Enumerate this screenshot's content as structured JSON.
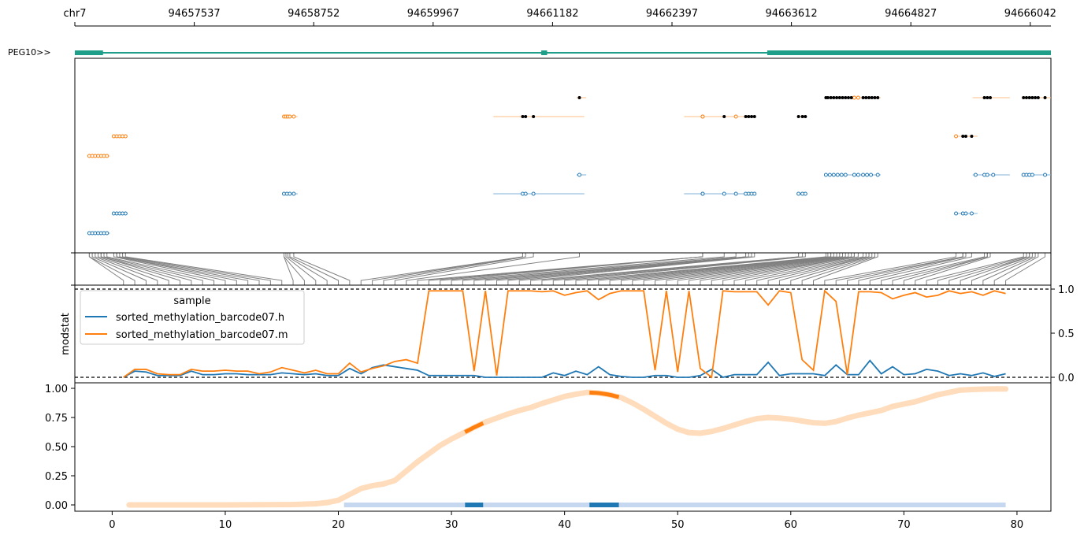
{
  "colors": {
    "gene": "#1f9e89",
    "blue": "#1f77b4",
    "orange": "#ff7f0e",
    "lightblue": "#aec7e8",
    "peach": "#ffd8b5",
    "connector": "#808080",
    "black": "#000000"
  },
  "chart_data": [
    {
      "type": "gene-track",
      "gene_label": "PEG10>>",
      "coordinate_axis": {
        "ticks": [
          "chr7",
          "94657537",
          "94658752",
          "94659967",
          "94661182",
          "94662397",
          "94663612",
          "94664827",
          "94666042"
        ],
        "range": [
          94656322,
          94666300
        ]
      },
      "exons": [
        [
          94656322,
          94656610
        ],
        [
          94661090,
          94661150
        ],
        [
          94663400,
          94666300
        ]
      ]
    },
    {
      "type": "scatter",
      "description_axis": "reads (genomic coordinate)",
      "rows": [
        {
          "color": "orange",
          "segments": [
            [
              94661450,
              94661550
            ]
          ],
          "open": [],
          "filled": [
            94661480
          ]
        },
        {
          "color": "orange",
          "segments": [
            [
              94662700,
              94663280
            ]
          ],
          "open": [
            94662740
          ],
          "filled": []
        },
        {
          "color": "orange",
          "segments": [
            [
              94664000,
              94664560
            ]
          ],
          "open": [
            94664290,
            94664330
          ],
          "filled": [
            94664000,
            94664020,
            94664050,
            94664080,
            94664110,
            94664140,
            94664170,
            94664200,
            94664230,
            94664260,
            94664380,
            94664410,
            94664440,
            94664470,
            94664500,
            94664530
          ]
        },
        {
          "color": "orange",
          "segments": [
            [
              94665500,
              94665880
            ]
          ],
          "open": [],
          "filled": [
            94665620,
            94665650,
            94665680
          ]
        },
        {
          "color": "orange",
          "segments": [
            [
              94666000,
              94666300
            ]
          ],
          "open": [],
          "filled": [
            94666020,
            94666050,
            94666080,
            94666110,
            94666140,
            94666170,
            94666240
          ]
        },
        {
          "color": "orange",
          "segments": [
            [
              94658440,
              94658600
            ]
          ],
          "open": [
            94658460,
            94658480,
            94658500,
            94658520,
            94658560
          ],
          "filled": []
        },
        {
          "color": "orange",
          "segments": [
            [
              94660600,
              94661530
            ]
          ],
          "open": [],
          "filled": [
            94660900,
            94660930,
            94661010
          ]
        },
        {
          "color": "orange",
          "segments": [
            [
              94662550,
              94662740
            ]
          ],
          "open": [
            94662740
          ],
          "filled": []
        },
        {
          "color": "orange",
          "segments": [
            [
              94662960,
              94663150
            ]
          ],
          "open": [
            94663080
          ],
          "filled": [
            94662960,
            94663180,
            94663210,
            94663240,
            94663270
          ]
        },
        {
          "color": "orange",
          "segments": [
            [
              94663720,
              94663800
            ]
          ],
          "open": [],
          "filled": [
            94663720,
            94663760,
            94663790
          ]
        },
        {
          "color": "orange",
          "segments": [
            [
              94656700,
              94656860
            ]
          ],
          "open": [
            94656720,
            94656750,
            94656780,
            94656810,
            94656840
          ],
          "filled": []
        },
        {
          "color": "orange",
          "segments": [
            [
              94665320,
              94665550
            ]
          ],
          "open": [
            94665330
          ],
          "filled": [
            94665400,
            94665430,
            94665490
          ]
        },
        {
          "color": "orange",
          "segments": [
            [
              94656460,
              94656680
            ]
          ],
          "open": [
            94656470,
            94656500,
            94656530,
            94656560,
            94656590,
            94656620,
            94656650
          ],
          "filled": []
        },
        {
          "color": "blue",
          "segments": [
            [
              94661450,
              94661550
            ]
          ],
          "open": [
            94661480
          ],
          "filled": []
        },
        {
          "color": "blue",
          "segments": [
            [
              94662700,
              94663280
            ]
          ],
          "open": [
            94662740
          ],
          "filled": []
        },
        {
          "color": "blue",
          "segments": [
            [
              94664000,
              94664560
            ]
          ],
          "open": [
            94664000,
            94664040,
            94664080,
            94664120,
            94664160,
            94664200,
            94664290,
            94664330,
            94664380,
            94664420,
            94664460,
            94664530
          ],
          "filled": []
        },
        {
          "color": "blue",
          "segments": [
            [
              94665500,
              94665880
            ]
          ],
          "open": [
            94665530,
            94665620,
            94665650,
            94665710
          ],
          "filled": []
        },
        {
          "color": "blue",
          "segments": [
            [
              94666000,
              94666300
            ]
          ],
          "open": [
            94666020,
            94666050,
            94666080,
            94666110,
            94666240
          ],
          "filled": []
        },
        {
          "color": "blue",
          "segments": [
            [
              94658440,
              94658600
            ]
          ],
          "open": [
            94658460,
            94658490,
            94658520,
            94658560
          ],
          "filled": []
        },
        {
          "color": "blue",
          "segments": [
            [
              94660600,
              94661530
            ]
          ],
          "open": [
            94660900,
            94660930,
            94661010
          ],
          "filled": []
        },
        {
          "color": "blue",
          "segments": [
            [
              94662550,
              94662740
            ]
          ],
          "open": [
            94662740
          ],
          "filled": []
        },
        {
          "color": "blue",
          "segments": [
            [
              94662960,
              94663280
            ]
          ],
          "open": [
            94662960,
            94663080,
            94663180,
            94663210,
            94663240,
            94663270
          ],
          "filled": []
        },
        {
          "color": "blue",
          "segments": [
            [
              94663720,
              94663800
            ]
          ],
          "open": [
            94663720,
            94663760,
            94663790
          ],
          "filled": []
        },
        {
          "color": "blue",
          "segments": [
            [
              94656700,
              94656860
            ]
          ],
          "open": [
            94656720,
            94656750,
            94656780,
            94656810,
            94656840
          ],
          "filled": []
        },
        {
          "color": "blue",
          "segments": [
            [
              94665320,
              94665550
            ]
          ],
          "open": [
            94665330,
            94665400,
            94665430,
            94665490
          ],
          "filled": []
        },
        {
          "color": "blue",
          "segments": [
            [
              94656460,
              94656680
            ]
          ],
          "open": [
            94656470,
            94656500,
            94656530,
            94656560,
            94656590,
            94656620,
            94656650
          ],
          "filled": []
        }
      ]
    },
    {
      "type": "line",
      "ylabel": "modstat",
      "ylim": [
        -0.05,
        1.05
      ],
      "yticks": [
        "0.0",
        "0.5",
        "1.0"
      ],
      "legend_title": "sample",
      "legend_placement": "top-left",
      "x": [
        1,
        2,
        3,
        4,
        5,
        6,
        7,
        8,
        9,
        10,
        11,
        12,
        13,
        14,
        15,
        16,
        17,
        18,
        19,
        20,
        21,
        22,
        23,
        24,
        25,
        26,
        27,
        28,
        29,
        30,
        31,
        32,
        33,
        34,
        35,
        36,
        37,
        38,
        39,
        40,
        41,
        42,
        43,
        44,
        45,
        46,
        47,
        48,
        49,
        50,
        51,
        52,
        53,
        54,
        55,
        56,
        57,
        58,
        59,
        60,
        61,
        62,
        63,
        64,
        65,
        66,
        67,
        68,
        69,
        70,
        71,
        72,
        73,
        74,
        75,
        76,
        77,
        78,
        79
      ],
      "series": [
        {
          "name": "sorted_methylation_barcode07.h",
          "color": "blue",
          "values": [
            0.0,
            0.07,
            0.06,
            0.02,
            0.02,
            0.02,
            0.07,
            0.03,
            0.03,
            0.04,
            0.04,
            0.03,
            0.03,
            0.03,
            0.05,
            0.04,
            0.03,
            0.04,
            0.02,
            0.02,
            0.1,
            0.04,
            0.11,
            0.14,
            0.12,
            0.1,
            0.08,
            0.02,
            0.02,
            0.02,
            0.02,
            0.02,
            0.0,
            0.0,
            0.0,
            0.0,
            0.0,
            0.0,
            0.05,
            0.02,
            0.07,
            0.03,
            0.12,
            0.03,
            0.01,
            0.0,
            0.0,
            0.02,
            0.02,
            0.0,
            0.0,
            0.02,
            0.09,
            0.0,
            0.03,
            0.03,
            0.03,
            0.17,
            0.02,
            0.04,
            0.04,
            0.04,
            0.02,
            0.14,
            0.03,
            0.03,
            0.19,
            0.04,
            0.12,
            0.03,
            0.04,
            0.09,
            0.07,
            0.02,
            0.04,
            0.02,
            0.05,
            0.01,
            0.04
          ]
        },
        {
          "name": "sorted_methylation_barcode07.m",
          "color": "orange",
          "values": [
            0.0,
            0.09,
            0.09,
            0.04,
            0.03,
            0.03,
            0.09,
            0.07,
            0.07,
            0.08,
            0.07,
            0.07,
            0.04,
            0.06,
            0.11,
            0.08,
            0.05,
            0.08,
            0.04,
            0.04,
            0.16,
            0.06,
            0.1,
            0.13,
            0.18,
            0.2,
            0.16,
            0.98,
            0.98,
            0.98,
            0.98,
            0.07,
            0.98,
            0.02,
            0.98,
            0.98,
            0.98,
            0.97,
            0.98,
            0.93,
            0.96,
            0.98,
            0.88,
            0.95,
            0.98,
            0.98,
            0.98,
            0.08,
            0.98,
            0.06,
            0.98,
            0.1,
            0.0,
            0.98,
            0.97,
            0.97,
            0.97,
            0.82,
            0.98,
            0.96,
            0.2,
            0.08,
            0.98,
            0.86,
            0.03,
            0.97,
            0.97,
            0.96,
            0.89,
            0.93,
            0.96,
            0.91,
            0.93,
            0.98,
            0.95,
            0.97,
            0.93,
            0.98,
            0.95
          ]
        }
      ]
    },
    {
      "type": "line",
      "xlim": [
        -3.3,
        83
      ],
      "xticks": [
        "0",
        "10",
        "20",
        "30",
        "40",
        "50",
        "60",
        "70",
        "80"
      ],
      "ylim": [
        -0.04,
        1.04
      ],
      "yticks": [
        "0.00",
        "0.25",
        "0.50",
        "0.75",
        "1.00"
      ],
      "cumulative_curve": [
        [
          1.5,
          0.0
        ],
        [
          10,
          0.0
        ],
        [
          16,
          0.003
        ],
        [
          18,
          0.01
        ],
        [
          19,
          0.02
        ],
        [
          20,
          0.04
        ],
        [
          21,
          0.09
        ],
        [
          22,
          0.14
        ],
        [
          23,
          0.165
        ],
        [
          24,
          0.18
        ],
        [
          25,
          0.21
        ],
        [
          26,
          0.29
        ],
        [
          27,
          0.37
        ],
        [
          28,
          0.44
        ],
        [
          29,
          0.51
        ],
        [
          30,
          0.565
        ],
        [
          31,
          0.615
        ],
        [
          32,
          0.665
        ],
        [
          33,
          0.71
        ],
        [
          34,
          0.745
        ],
        [
          35,
          0.78
        ],
        [
          36,
          0.81
        ],
        [
          37,
          0.835
        ],
        [
          38,
          0.87
        ],
        [
          39,
          0.9
        ],
        [
          40,
          0.93
        ],
        [
          41,
          0.95
        ],
        [
          42,
          0.965
        ],
        [
          43,
          0.96
        ],
        [
          44,
          0.945
        ],
        [
          45,
          0.92
        ],
        [
          46,
          0.875
        ],
        [
          47,
          0.82
        ],
        [
          48,
          0.76
        ],
        [
          49,
          0.7
        ],
        [
          50,
          0.65
        ],
        [
          51,
          0.62
        ],
        [
          52,
          0.615
        ],
        [
          53,
          0.63
        ],
        [
          54,
          0.655
        ],
        [
          55,
          0.685
        ],
        [
          56,
          0.715
        ],
        [
          57,
          0.74
        ],
        [
          58,
          0.75
        ],
        [
          59,
          0.745
        ],
        [
          60,
          0.735
        ],
        [
          61,
          0.72
        ],
        [
          62,
          0.705
        ],
        [
          63,
          0.7
        ],
        [
          64,
          0.715
        ],
        [
          65,
          0.745
        ],
        [
          66,
          0.77
        ],
        [
          67,
          0.79
        ],
        [
          68,
          0.81
        ],
        [
          69,
          0.845
        ],
        [
          70,
          0.865
        ],
        [
          71,
          0.885
        ],
        [
          72,
          0.915
        ],
        [
          73,
          0.945
        ],
        [
          74,
          0.965
        ],
        [
          75,
          0.985
        ],
        [
          76,
          0.99
        ],
        [
          77,
          0.993
        ],
        [
          78,
          0.995
        ],
        [
          79,
          0.995
        ]
      ],
      "highlight_ranges": [
        [
          31.2,
          32.8
        ],
        [
          42.2,
          44.8
        ]
      ],
      "baseline_range": [
        20.5,
        79
      ],
      "baseline_highlights": [
        [
          31.2,
          32.8
        ],
        [
          42.2,
          44.8
        ]
      ]
    }
  ]
}
